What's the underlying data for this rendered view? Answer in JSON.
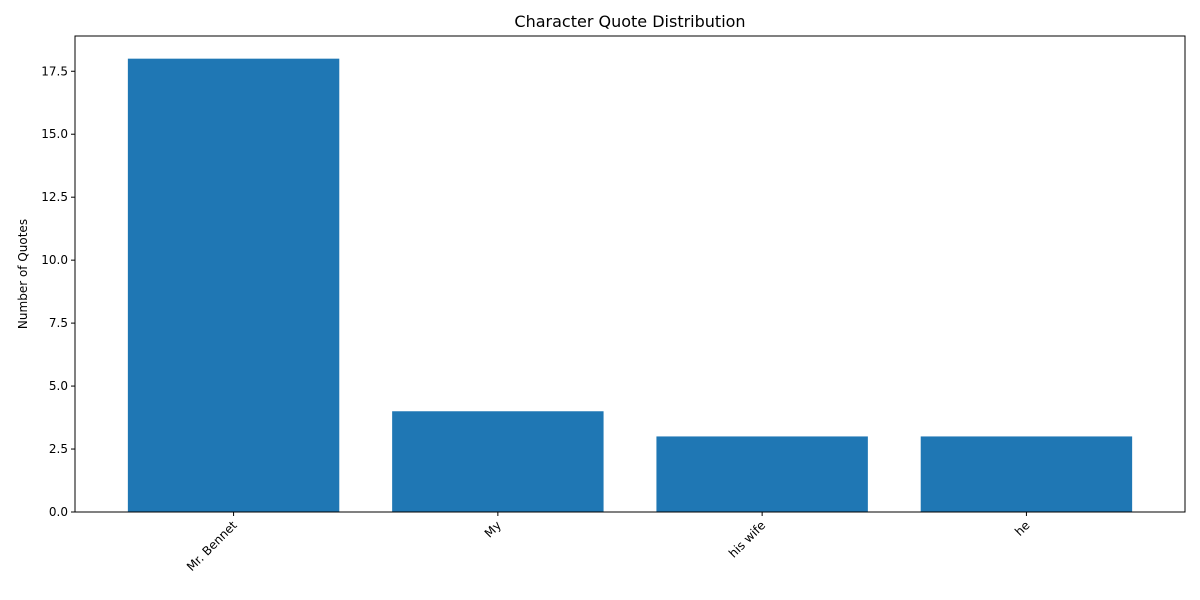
{
  "chart_data": {
    "type": "bar",
    "title": "Character Quote Distribution",
    "xlabel": "",
    "ylabel": "Number of Quotes",
    "categories": [
      "Mr. Bennet",
      "My",
      "his wife",
      "he"
    ],
    "values": [
      18,
      4,
      3,
      3
    ],
    "ylim": [
      0,
      18.9
    ],
    "yticks": [
      "0.0",
      "2.5",
      "5.0",
      "7.5",
      "10.0",
      "12.5",
      "15.0",
      "17.5"
    ],
    "bar_color": "#1f77b4",
    "grid": false,
    "legend": "none"
  }
}
